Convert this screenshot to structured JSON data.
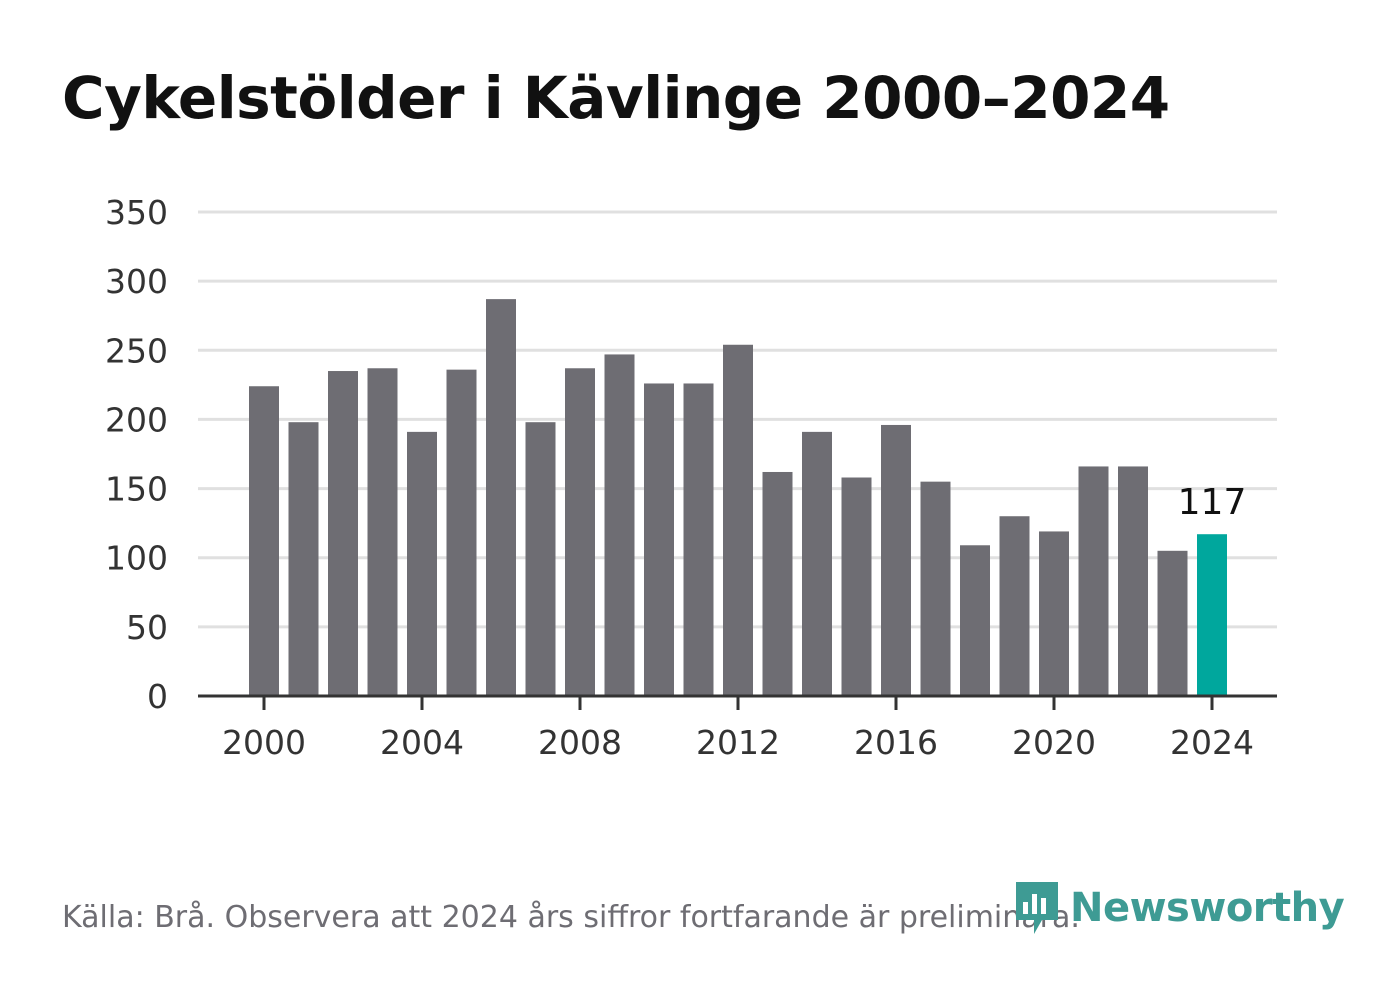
{
  "title": "Cykelstölder i Kävlinge 2000–2024",
  "source": "Källa: Brå. Observera att 2024 års siffror fortfarande är preliminära.",
  "logo": {
    "text": "Newsworthy",
    "icon": "newsworthy-bar-chart-pin-icon"
  },
  "colors": {
    "bar": "#6e6d73",
    "highlight": "#00a79d",
    "grid": "#e0e0e0",
    "axis": "#333333",
    "logo": "#3e9b94"
  },
  "chart_data": {
    "type": "bar",
    "title": "Cykelstölder i Kävlinge 2000–2024",
    "xlabel": "",
    "ylabel": "",
    "x": [
      2000,
      2001,
      2002,
      2003,
      2004,
      2005,
      2006,
      2007,
      2008,
      2009,
      2010,
      2011,
      2012,
      2013,
      2014,
      2015,
      2016,
      2017,
      2018,
      2019,
      2020,
      2021,
      2022,
      2023,
      2024
    ],
    "values": [
      224,
      198,
      235,
      237,
      191,
      236,
      287,
      198,
      237,
      247,
      226,
      226,
      254,
      162,
      191,
      158,
      196,
      155,
      109,
      130,
      119,
      166,
      166,
      105,
      117
    ],
    "ylim": [
      0,
      350
    ],
    "yticks": [
      0,
      50,
      100,
      150,
      200,
      250,
      300,
      350
    ],
    "xticks": [
      2000,
      2004,
      2008,
      2012,
      2016,
      2020,
      2024
    ],
    "highlight": {
      "x": 2024,
      "label": "117"
    },
    "grid": true,
    "legend": "none"
  }
}
